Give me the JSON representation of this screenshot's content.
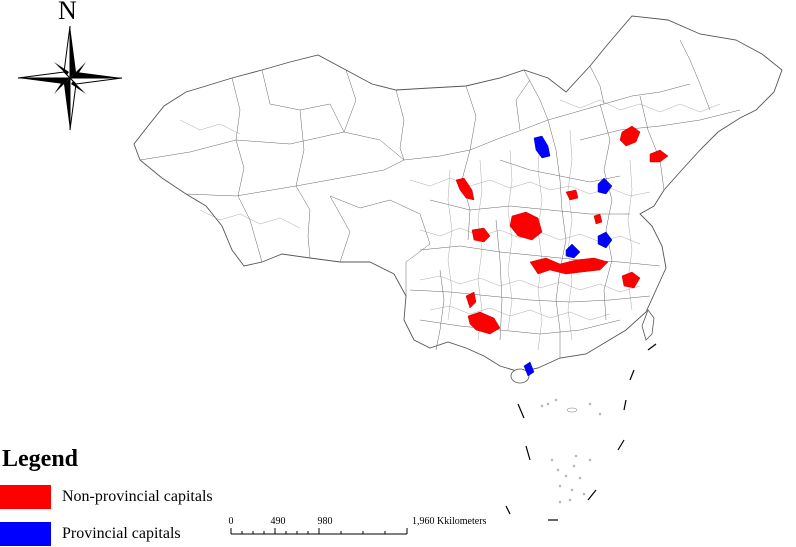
{
  "compass": {
    "north_label": "N",
    "icon": "north-arrow-compass-rose"
  },
  "legend": {
    "title": "Legend",
    "items": [
      {
        "label": "Non-provincial capitals",
        "color": "#ff0000"
      },
      {
        "label": "Provincial capitals",
        "color": "#0000ff"
      }
    ]
  },
  "scale_bar": {
    "ticks": [
      "0",
      "490",
      "980"
    ],
    "last_tick": "1,960",
    "unit": "Kkilometers"
  },
  "map": {
    "outline_color": "#555555",
    "highlight_red": "#ff0000",
    "highlight_blue": "#0000ff"
  }
}
